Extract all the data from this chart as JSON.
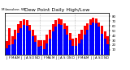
{
  "title": "Dew Point Daily High/Low",
  "top_left_label": "Milwaukee, WI",
  "ylabel_right": "F",
  "background_color": "#ffffff",
  "plot_bg_color": "#ffffff",
  "bar_width": 0.85,
  "categories": [
    "J",
    "F",
    "M",
    "A",
    "M",
    "J",
    "J",
    "A",
    "S",
    "O",
    "N",
    "D",
    "J",
    "F",
    "M",
    "A",
    "M",
    "J",
    "J",
    "A",
    "S",
    "O",
    "N",
    "D",
    "J",
    "F",
    "M",
    "A",
    "M",
    "J",
    "J",
    "A",
    "S",
    "O",
    "N",
    "D"
  ],
  "highs": [
    28,
    55,
    38,
    52,
    63,
    70,
    74,
    72,
    62,
    52,
    40,
    30,
    30,
    30,
    42,
    52,
    64,
    72,
    76,
    74,
    66,
    60,
    46,
    34,
    36,
    44,
    52,
    60,
    66,
    74,
    78,
    76,
    68,
    60,
    48,
    38
  ],
  "lows": [
    14,
    20,
    22,
    32,
    46,
    56,
    62,
    60,
    50,
    38,
    26,
    16,
    18,
    12,
    24,
    34,
    48,
    58,
    64,
    62,
    54,
    42,
    30,
    18,
    18,
    24,
    32,
    42,
    52,
    62,
    68,
    66,
    58,
    44,
    34,
    22
  ],
  "ylim_min": 0,
  "ylim_max": 88,
  "ytick_right": [
    10,
    20,
    30,
    40,
    50,
    60,
    70,
    80
  ],
  "high_color": "#ff0000",
  "low_color": "#0000ff",
  "grid_color": "#cccccc",
  "title_fontsize": 4.5,
  "label_fontsize": 3.0,
  "tick_fontsize": 2.8
}
